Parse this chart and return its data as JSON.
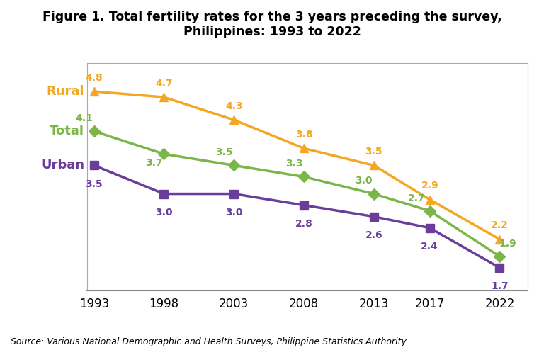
{
  "title_line1": "Figure 1. Total fertility rates for the 3 years preceding the survey,",
  "title_line2": "Philippines: 1993 to 2022",
  "source": "Source: Various National Demographic and Health Surveys, Philippine Statistics Authority",
  "years": [
    1993,
    1998,
    2003,
    2008,
    2013,
    2017,
    2022
  ],
  "rural": [
    4.8,
    4.7,
    4.3,
    3.8,
    3.5,
    2.9,
    2.2
  ],
  "total": [
    4.1,
    3.7,
    3.5,
    3.3,
    3.0,
    2.7,
    1.9
  ],
  "urban": [
    3.5,
    3.0,
    3.0,
    2.8,
    2.6,
    2.4,
    1.7
  ],
  "rural_color": "#F5A623",
  "total_color": "#7AB648",
  "urban_color": "#6A3D9A",
  "ylim_bottom": 1.3,
  "ylim_top": 5.3,
  "xlim_left": 1992.5,
  "xlim_right": 2024,
  "title_fontsize": 12.5,
  "label_fontsize": 10,
  "source_fontsize": 9,
  "legend_fontsize": 13
}
